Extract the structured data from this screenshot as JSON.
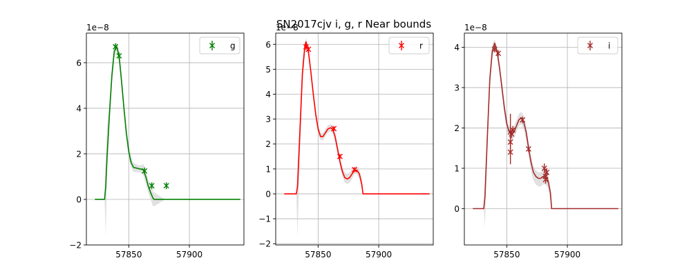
{
  "figure": {
    "title": "SN2017cjv  i, g, r Near bounds"
  },
  "chart_data": [
    {
      "type": "line",
      "band": "g",
      "color": "#008000",
      "legend": {
        "label": "g",
        "placement": "top-right"
      },
      "grid": true,
      "xlim": [
        57815,
        57945
      ],
      "ylim": [
        -2,
        7.3
      ],
      "exponent_label": "1e−8",
      "xticks": [
        57850,
        57900
      ],
      "xtick_labels": [
        "57850",
        "57900"
      ],
      "yticks": [
        -2,
        0,
        2,
        4,
        6
      ],
      "ytick_labels": [
        "−2",
        "0",
        "2",
        "4",
        "6"
      ],
      "model": {
        "x": [
          57822,
          57830,
          57831,
          57832,
          57834,
          57836,
          57838,
          57840,
          57842,
          57844,
          57846,
          57848,
          57850,
          57852,
          57854,
          57856,
          57858,
          57860,
          57862,
          57864,
          57866,
          57868,
          57870,
          57871,
          57880,
          57900,
          57920,
          57942
        ],
        "y": [
          0,
          0,
          0.6,
          1.8,
          3.7,
          5.4,
          6.5,
          6.7,
          6.3,
          5.2,
          4.0,
          2.9,
          2.1,
          1.6,
          1.4,
          1.38,
          1.35,
          1.33,
          1.3,
          1.0,
          0.6,
          0.3,
          0.05,
          0,
          0,
          0,
          0,
          0
        ],
        "lower": [
          0,
          0,
          -1.6,
          1.0,
          3.2,
          5.0,
          6.2,
          6.5,
          6.0,
          4.9,
          3.7,
          2.6,
          1.8,
          1.4,
          1.2,
          1.2,
          1.2,
          1.15,
          1.05,
          0.7,
          0.3,
          0.0,
          -0.3,
          -0.3,
          0,
          0,
          0,
          0
        ],
        "upper": [
          0,
          0,
          2.0,
          3.2,
          4.3,
          5.8,
          6.8,
          6.9,
          6.6,
          5.5,
          4.3,
          3.2,
          2.4,
          1.8,
          1.6,
          1.55,
          1.5,
          1.5,
          1.55,
          1.3,
          0.9,
          0.6,
          0.35,
          0.3,
          0,
          0,
          0,
          0
        ]
      },
      "points": [
        {
          "x": 57839,
          "y": 6.7,
          "err": 0.15
        },
        {
          "x": 57842,
          "y": 6.3,
          "err": 0.15
        },
        {
          "x": 57863,
          "y": 1.25,
          "err": 0.15
        },
        {
          "x": 57869,
          "y": 0.6,
          "err": 0.15
        },
        {
          "x": 57881,
          "y": 0.6,
          "err": 0.15
        }
      ]
    },
    {
      "type": "line",
      "band": "r",
      "color": "#ff0000",
      "legend": {
        "label": "r",
        "placement": "top-right"
      },
      "grid": true,
      "xlim": [
        57815,
        57945
      ],
      "ylim": [
        -2.05,
        6.45
      ],
      "exponent_label": "1e−8",
      "xticks": [
        57850,
        57900
      ],
      "xtick_labels": [
        "57850",
        "57900"
      ],
      "yticks": [
        -2,
        -1,
        0,
        1,
        2,
        3,
        4,
        5,
        6
      ],
      "ytick_labels": [
        "−2",
        "−1",
        "0",
        "1",
        "2",
        "3",
        "4",
        "5",
        "6"
      ],
      "model": {
        "x": [
          57822,
          57832,
          57833,
          57835,
          57837,
          57839,
          57840,
          57842,
          57844,
          57846,
          57848,
          57850,
          57852,
          57854,
          57856,
          57858,
          57860,
          57862,
          57864,
          57866,
          57868,
          57870,
          57872,
          57874,
          57876,
          57878,
          57880,
          57882,
          57884,
          57886,
          57887,
          57900,
          57920,
          57942
        ],
        "y": [
          0,
          0,
          0.3,
          2.5,
          4.8,
          5.9,
          6.1,
          5.7,
          4.9,
          4.0,
          3.2,
          2.6,
          2.3,
          2.3,
          2.45,
          2.6,
          2.65,
          2.6,
          2.3,
          1.8,
          1.3,
          0.9,
          0.65,
          0.6,
          0.65,
          0.8,
          0.95,
          0.95,
          0.8,
          0.4,
          0,
          0,
          0,
          0
        ],
        "lower": [
          0,
          0,
          -1.7,
          1.6,
          4.3,
          5.6,
          5.9,
          5.5,
          4.7,
          3.8,
          3.0,
          2.4,
          2.15,
          2.15,
          2.3,
          2.45,
          2.5,
          2.45,
          2.1,
          1.6,
          1.1,
          0.7,
          0.45,
          0.4,
          0.45,
          0.6,
          0.8,
          0.8,
          0.6,
          0.2,
          0,
          0,
          0,
          0
        ],
        "upper": [
          0,
          0,
          1.2,
          3.3,
          5.3,
          6.1,
          6.25,
          5.9,
          5.1,
          4.2,
          3.4,
          2.8,
          2.45,
          2.45,
          2.6,
          2.75,
          2.8,
          2.75,
          2.5,
          2.0,
          1.5,
          1.1,
          0.85,
          0.8,
          0.85,
          1.0,
          1.1,
          1.1,
          1.0,
          0.6,
          0,
          0,
          0,
          0
        ]
      },
      "points": [
        {
          "x": 57840,
          "y": 5.9,
          "err": 0.12
        },
        {
          "x": 57842,
          "y": 5.8,
          "err": 0.12
        },
        {
          "x": 57863,
          "y": 2.62,
          "err": 0.1
        },
        {
          "x": 57868,
          "y": 1.5,
          "err": 0.1
        },
        {
          "x": 57880,
          "y": 0.97,
          "err": 0.1
        }
      ]
    },
    {
      "type": "line",
      "band": "i",
      "color": "#a52a2a",
      "legend": {
        "label": "i",
        "placement": "top-right"
      },
      "grid": true,
      "xlim": [
        57815,
        57945
      ],
      "ylim": [
        -0.9,
        4.35
      ],
      "exponent_label": "1e−8",
      "xticks": [
        57850,
        57900
      ],
      "xtick_labels": [
        "57850",
        "57900"
      ],
      "yticks": [
        0,
        1,
        2,
        3,
        4
      ],
      "ytick_labels": [
        "0",
        "1",
        "2",
        "3",
        "4"
      ],
      "model": {
        "x": [
          57822,
          57831,
          57832,
          57834,
          57836,
          57838,
          57840,
          57842,
          57844,
          57846,
          57848,
          57850,
          57852,
          57854,
          57856,
          57858,
          57860,
          57862,
          57864,
          57866,
          57868,
          57870,
          57872,
          57874,
          57876,
          57878,
          57880,
          57882,
          57884,
          57886,
          57887,
          57900,
          57920,
          57942
        ],
        "y": [
          0,
          0,
          0.3,
          1.8,
          3.2,
          3.9,
          4.1,
          3.9,
          3.5,
          3.0,
          2.5,
          2.1,
          1.9,
          1.85,
          1.9,
          2.05,
          2.2,
          2.25,
          2.15,
          1.9,
          1.5,
          1.15,
          0.9,
          0.8,
          0.75,
          0.75,
          0.8,
          0.8,
          0.7,
          0.4,
          0,
          0,
          0,
          0
        ],
        "lower": [
          0,
          0,
          -0.45,
          1.4,
          3.0,
          3.7,
          3.95,
          3.75,
          3.35,
          2.85,
          2.35,
          1.95,
          1.75,
          1.7,
          1.75,
          1.9,
          2.05,
          2.1,
          1.95,
          1.7,
          1.3,
          0.95,
          0.7,
          0.6,
          0.55,
          0.55,
          0.6,
          0.6,
          0.5,
          0.2,
          0,
          0,
          0,
          0
        ],
        "upper": [
          0,
          0,
          0.7,
          2.1,
          3.4,
          4.05,
          4.2,
          4.0,
          3.6,
          3.15,
          2.65,
          2.25,
          2.05,
          2.0,
          2.05,
          2.2,
          2.35,
          2.4,
          2.3,
          2.05,
          1.65,
          1.3,
          1.05,
          0.95,
          0.9,
          0.9,
          0.95,
          0.95,
          0.85,
          0.55,
          0,
          0,
          0,
          0
        ]
      },
      "points": [
        {
          "x": 57840,
          "y": 3.95,
          "err": 0.08
        },
        {
          "x": 57843,
          "y": 3.85,
          "err": 0.08
        },
        {
          "x": 57853,
          "y": 1.9,
          "err": 0.45
        },
        {
          "x": 57854,
          "y": 1.85,
          "err": 0.1
        },
        {
          "x": 57853,
          "y": 1.65,
          "err": 0.1
        },
        {
          "x": 57853,
          "y": 1.4,
          "err": 0.3
        },
        {
          "x": 57855,
          "y": 1.95,
          "err": 0.1
        },
        {
          "x": 57863,
          "y": 2.2,
          "err": 0.08
        },
        {
          "x": 57868,
          "y": 1.48,
          "err": 0.08
        },
        {
          "x": 57881,
          "y": 1.0,
          "err": 0.12
        },
        {
          "x": 57882,
          "y": 0.8,
          "err": 0.1
        },
        {
          "x": 57882,
          "y": 0.72,
          "err": 0.1
        },
        {
          "x": 57883,
          "y": 0.9,
          "err": 0.1
        }
      ]
    }
  ]
}
